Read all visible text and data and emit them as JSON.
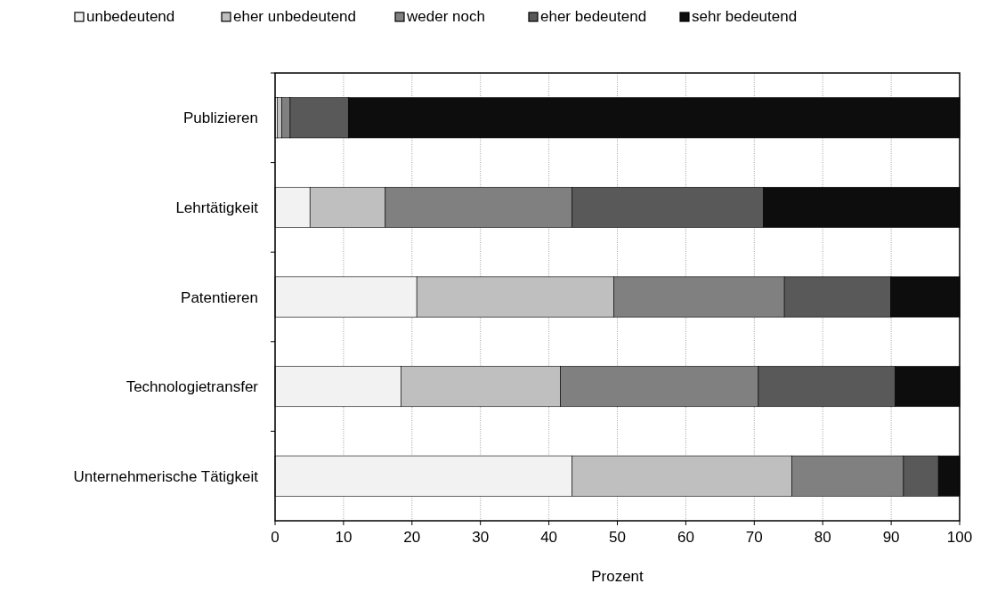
{
  "chart_data": {
    "type": "bar",
    "orientation": "horizontal",
    "stacked": true,
    "xlabel": "Prozent",
    "categories": [
      "Publizieren",
      "Lehrtätigkeit",
      "Patentieren",
      "Technologietransfer",
      "Unternehmerische Tätigkeit"
    ],
    "series": [
      {
        "name": "unbedeutend",
        "color": "#f2f2f2",
        "values": [
          0.3,
          5.1,
          20.7,
          18.4,
          43.4
        ]
      },
      {
        "name": "eher unbedeutend",
        "color": "#bfbfbf",
        "values": [
          0.7,
          11.0,
          28.8,
          23.3,
          32.1
        ]
      },
      {
        "name": "weder noch",
        "color": "#808080",
        "values": [
          1.2,
          27.3,
          24.9,
          28.9,
          16.3
        ]
      },
      {
        "name": "eher bedeutend",
        "color": "#595959",
        "values": [
          8.5,
          27.9,
          15.5,
          20.0,
          5.1
        ]
      },
      {
        "name": "sehr bedeutend",
        "color": "#0d0d0d",
        "values": [
          89.3,
          28.7,
          10.1,
          9.4,
          3.1
        ]
      }
    ],
    "xlim": [
      0,
      100
    ],
    "xticks": [
      0,
      10,
      20,
      30,
      40,
      50,
      60,
      70,
      80,
      90,
      100
    ],
    "grid": "x",
    "legend": "top"
  }
}
